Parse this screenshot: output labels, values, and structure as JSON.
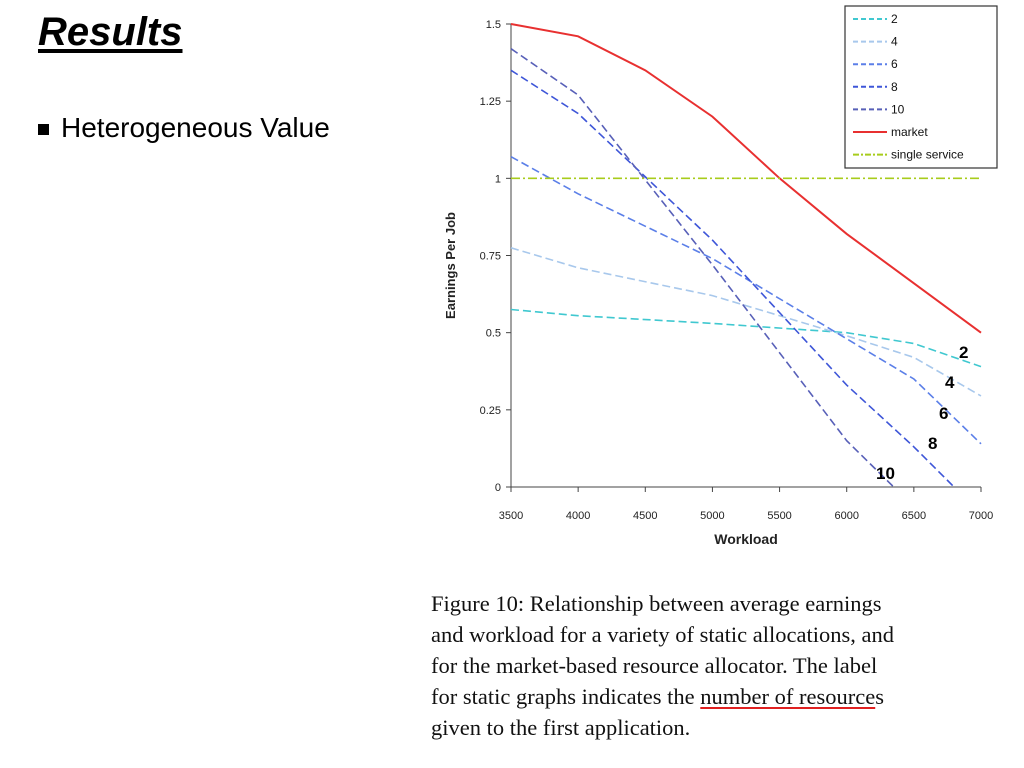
{
  "slide": {
    "title": "Results",
    "bullet": "Heterogeneous Value"
  },
  "caption": {
    "lines": [
      "Figure 10: Relationship between average earnings",
      "and workload for a variety of static allocations, and",
      "for the market-based resource allocator.  The label",
      "for static graphs indicates the "
    ],
    "underlined": "number of resource",
    "line4_tail": "s",
    "line5": "given to the first application."
  },
  "chart_data": {
    "type": "line",
    "title": "",
    "xlabel": "Workload",
    "ylabel": "Earnings Per Job",
    "xlim": [
      3500,
      7000
    ],
    "ylim": [
      0,
      1.5
    ],
    "xticks": [
      3500,
      4000,
      4500,
      5000,
      5500,
      6000,
      6500,
      7000
    ],
    "yticks": [
      0,
      0.25,
      0.5,
      0.75,
      1,
      1.25,
      1.5
    ],
    "ytick_labels": [
      "0",
      "0.25",
      "0.5",
      "0.75",
      "1",
      "1.25",
      "1.5"
    ],
    "grid": false,
    "legend_position": "top-right",
    "series": [
      {
        "name": "2",
        "color": "#40c8d0",
        "dash": "dashed",
        "end_label": "2",
        "x": [
          3500,
          4000,
          5000,
          6000,
          6500,
          7000
        ],
        "y": [
          0.575,
          0.555,
          0.53,
          0.5,
          0.465,
          0.39
        ]
      },
      {
        "name": "4",
        "color": "#a8c8ec",
        "dash": "dashed",
        "end_label": "4",
        "x": [
          3500,
          4000,
          5000,
          6000,
          6500,
          7000
        ],
        "y": [
          0.775,
          0.71,
          0.62,
          0.49,
          0.42,
          0.295
        ]
      },
      {
        "name": "6",
        "color": "#5b7fe8",
        "dash": "dashed",
        "end_label": "6",
        "x": [
          3500,
          4000,
          5000,
          6000,
          6500,
          7000
        ],
        "y": [
          1.07,
          0.95,
          0.74,
          0.48,
          0.35,
          0.14
        ]
      },
      {
        "name": "8",
        "color": "#3e56d8",
        "dash": "dashed",
        "end_label": "8",
        "x": [
          3500,
          4000,
          5000,
          6000,
          6500,
          6800
        ],
        "y": [
          1.35,
          1.21,
          0.8,
          0.33,
          0.13,
          0
        ]
      },
      {
        "name": "10",
        "color": "#5860b8",
        "dash": "dashed",
        "end_label": "10",
        "x": [
          3500,
          4000,
          5000,
          6000,
          6350
        ],
        "y": [
          1.42,
          1.27,
          0.72,
          0.15,
          0
        ]
      },
      {
        "name": "market",
        "color": "#e83030",
        "dash": "solid",
        "x": [
          3500,
          4000,
          4500,
          5000,
          5500,
          6000,
          6500,
          7000
        ],
        "y": [
          1.5,
          1.46,
          1.35,
          1.2,
          1.0,
          0.82,
          0.66,
          0.5
        ]
      },
      {
        "name": "single service",
        "color": "#a8cc1c",
        "dash": "dashdot",
        "x": [
          3500,
          7000
        ],
        "y": [
          1.0,
          1.0
        ]
      }
    ]
  }
}
